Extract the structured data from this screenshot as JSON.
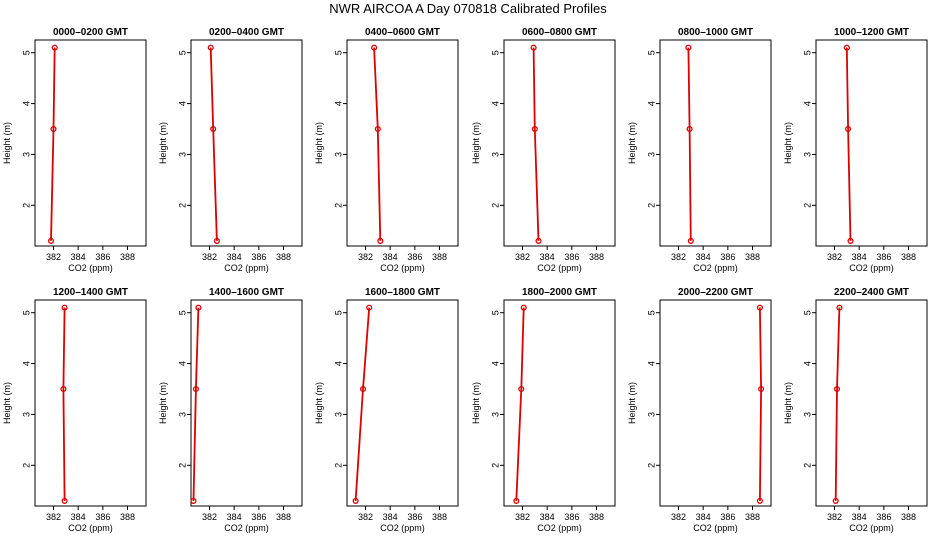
{
  "title": "NWR AIRCOA A  Day 070818  Calibrated Profiles",
  "chart_data": {
    "type": "line",
    "xlabel": "CO2 (ppm)",
    "ylabel": "Height (m)",
    "xlim": [
      380.5,
      389.5
    ],
    "ylim": [
      1.2,
      5.25
    ],
    "xticks": [
      382,
      384,
      386,
      388
    ],
    "yticks": [
      2,
      3,
      4,
      5
    ],
    "grid": false,
    "series_color": "#dd0000",
    "panels": [
      {
        "title": "0000–0200 GMT",
        "points": [
          {
            "x": 381.8,
            "y": 1.3
          },
          {
            "x": 382.0,
            "y": 3.5
          },
          {
            "x": 382.1,
            "y": 5.1
          }
        ]
      },
      {
        "title": "0200–0400 GMT",
        "points": [
          {
            "x": 382.6,
            "y": 1.3
          },
          {
            "x": 382.3,
            "y": 3.5
          },
          {
            "x": 382.1,
            "y": 5.1
          }
        ]
      },
      {
        "title": "0400–0600 GMT",
        "points": [
          {
            "x": 383.2,
            "y": 1.3
          },
          {
            "x": 383.0,
            "y": 3.5
          },
          {
            "x": 382.7,
            "y": 5.1
          }
        ]
      },
      {
        "title": "0600–0800 GMT",
        "points": [
          {
            "x": 383.3,
            "y": 1.3
          },
          {
            "x": 383.0,
            "y": 3.5
          },
          {
            "x": 382.9,
            "y": 5.1
          }
        ]
      },
      {
        "title": "0800–1000 GMT",
        "points": [
          {
            "x": 383.0,
            "y": 1.3
          },
          {
            "x": 382.9,
            "y": 3.5
          },
          {
            "x": 382.8,
            "y": 5.1
          }
        ]
      },
      {
        "title": "1000–1200 GMT",
        "points": [
          {
            "x": 383.3,
            "y": 1.3
          },
          {
            "x": 383.1,
            "y": 3.5
          },
          {
            "x": 383.0,
            "y": 5.1
          }
        ]
      },
      {
        "title": "1200–1400 GMT",
        "points": [
          {
            "x": 382.9,
            "y": 1.3
          },
          {
            "x": 382.8,
            "y": 3.5
          },
          {
            "x": 382.9,
            "y": 5.1
          }
        ]
      },
      {
        "title": "1400–1600 GMT",
        "points": [
          {
            "x": 380.7,
            "y": 1.3
          },
          {
            "x": 380.9,
            "y": 3.5
          },
          {
            "x": 381.1,
            "y": 5.1
          }
        ]
      },
      {
        "title": "1600–1800 GMT",
        "points": [
          {
            "x": 381.2,
            "y": 1.3
          },
          {
            "x": 381.8,
            "y": 3.5
          },
          {
            "x": 382.3,
            "y": 5.1
          }
        ]
      },
      {
        "title": "1800–2000 GMT",
        "points": [
          {
            "x": 381.5,
            "y": 1.3
          },
          {
            "x": 381.9,
            "y": 3.5
          },
          {
            "x": 382.1,
            "y": 5.1
          }
        ]
      },
      {
        "title": "2000–2200 GMT",
        "points": [
          {
            "x": 388.6,
            "y": 1.3
          },
          {
            "x": 388.7,
            "y": 3.5
          },
          {
            "x": 388.6,
            "y": 5.1
          }
        ]
      },
      {
        "title": "2200–2400 GMT",
        "points": [
          {
            "x": 382.1,
            "y": 1.3
          },
          {
            "x": 382.2,
            "y": 3.5
          },
          {
            "x": 382.4,
            "y": 5.1
          }
        ]
      }
    ]
  }
}
